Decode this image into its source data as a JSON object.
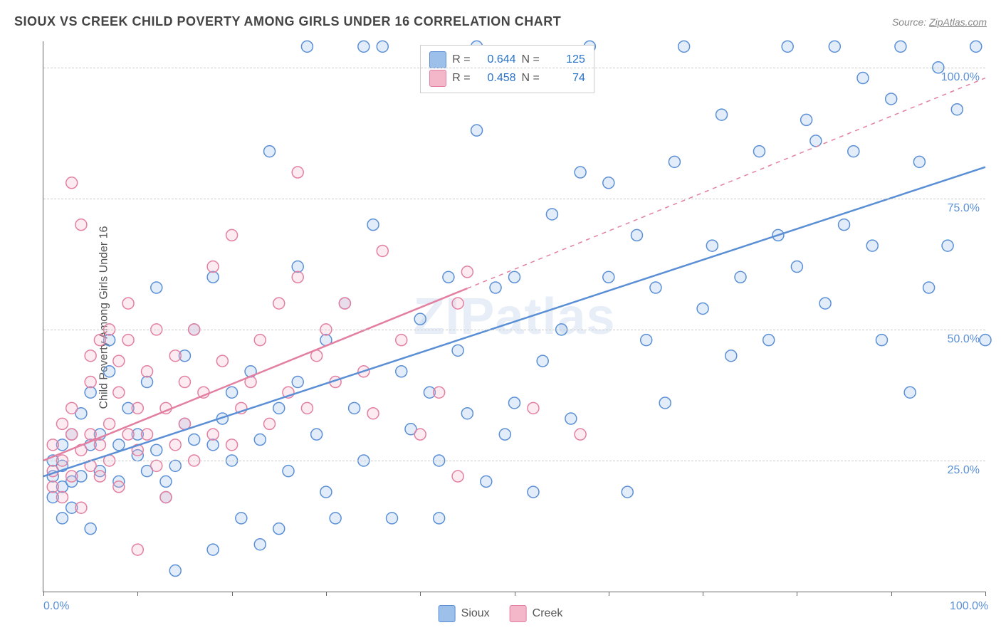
{
  "title": "SIOUX VS CREEK CHILD POVERTY AMONG GIRLS UNDER 16 CORRELATION CHART",
  "source_prefix": "Source: ",
  "source_name": "ZipAtlas.com",
  "ylabel": "Child Poverty Among Girls Under 16",
  "watermark": "ZIPatlas",
  "chart": {
    "type": "scatter",
    "xlim": [
      0,
      100
    ],
    "ylim": [
      0,
      105
    ],
    "xtick_positions": [
      0,
      10,
      20,
      30,
      40,
      50,
      60,
      70,
      80,
      90,
      100
    ],
    "xtick_labels": {
      "0": "0.0%",
      "100": "100.0%"
    },
    "ytick_positions": [
      25,
      50,
      75,
      100
    ],
    "ytick_labels": [
      "25.0%",
      "50.0%",
      "75.0%",
      "100.0%"
    ],
    "grid_color": "#cccccc",
    "background_color": "#ffffff",
    "marker_radius": 8,
    "marker_stroke_width": 1.5,
    "marker_fill_opacity": 0.28,
    "line_width": 2.5,
    "series": [
      {
        "name": "Sioux",
        "color_stroke": "#5a8fd6",
        "color_fill": "#9cc0ea",
        "R": 0.644,
        "N": 125,
        "trend": {
          "x1": 0,
          "y1": 22,
          "x2": 100,
          "y2": 81,
          "dash_from_x": null
        },
        "points": [
          [
            1,
            22
          ],
          [
            1,
            25
          ],
          [
            1,
            18
          ],
          [
            2,
            20
          ],
          [
            2,
            24
          ],
          [
            2,
            14
          ],
          [
            2,
            28
          ],
          [
            3,
            21
          ],
          [
            3,
            30
          ],
          [
            3,
            16
          ],
          [
            4,
            34
          ],
          [
            4,
            22
          ],
          [
            5,
            28
          ],
          [
            5,
            12
          ],
          [
            5,
            38
          ],
          [
            6,
            23
          ],
          [
            6,
            30
          ],
          [
            7,
            42
          ],
          [
            7,
            48
          ],
          [
            8,
            28
          ],
          [
            8,
            21
          ],
          [
            9,
            35
          ],
          [
            10,
            26
          ],
          [
            10,
            30
          ],
          [
            11,
            23
          ],
          [
            11,
            40
          ],
          [
            12,
            58
          ],
          [
            12,
            27
          ],
          [
            13,
            21
          ],
          [
            13,
            18
          ],
          [
            14,
            4
          ],
          [
            14,
            24
          ],
          [
            15,
            32
          ],
          [
            15,
            45
          ],
          [
            16,
            29
          ],
          [
            16,
            50
          ],
          [
            18,
            8
          ],
          [
            18,
            28
          ],
          [
            18,
            60
          ],
          [
            19,
            33
          ],
          [
            20,
            25
          ],
          [
            20,
            38
          ],
          [
            21,
            14
          ],
          [
            22,
            42
          ],
          [
            23,
            9
          ],
          [
            23,
            29
          ],
          [
            24,
            84
          ],
          [
            25,
            35
          ],
          [
            25,
            12
          ],
          [
            26,
            23
          ],
          [
            27,
            40
          ],
          [
            27,
            62
          ],
          [
            28,
            104
          ],
          [
            29,
            30
          ],
          [
            30,
            19
          ],
          [
            30,
            48
          ],
          [
            31,
            14
          ],
          [
            32,
            55
          ],
          [
            33,
            35
          ],
          [
            34,
            25
          ],
          [
            34,
            104
          ],
          [
            35,
            70
          ],
          [
            36,
            104
          ],
          [
            37,
            14
          ],
          [
            38,
            42
          ],
          [
            39,
            31
          ],
          [
            40,
            52
          ],
          [
            41,
            38
          ],
          [
            42,
            14
          ],
          [
            42,
            25
          ],
          [
            43,
            60
          ],
          [
            44,
            46
          ],
          [
            45,
            34
          ],
          [
            46,
            104
          ],
          [
            46,
            88
          ],
          [
            47,
            21
          ],
          [
            48,
            58
          ],
          [
            49,
            30
          ],
          [
            50,
            36
          ],
          [
            50,
            60
          ],
          [
            52,
            19
          ],
          [
            53,
            44
          ],
          [
            54,
            72
          ],
          [
            55,
            50
          ],
          [
            56,
            33
          ],
          [
            57,
            80
          ],
          [
            58,
            104
          ],
          [
            60,
            78
          ],
          [
            60,
            60
          ],
          [
            62,
            19
          ],
          [
            63,
            68
          ],
          [
            64,
            48
          ],
          [
            65,
            58
          ],
          [
            66,
            36
          ],
          [
            67,
            82
          ],
          [
            68,
            104
          ],
          [
            70,
            54
          ],
          [
            71,
            66
          ],
          [
            72,
            91
          ],
          [
            73,
            45
          ],
          [
            74,
            60
          ],
          [
            76,
            84
          ],
          [
            77,
            48
          ],
          [
            78,
            68
          ],
          [
            79,
            104
          ],
          [
            80,
            62
          ],
          [
            81,
            90
          ],
          [
            82,
            86
          ],
          [
            83,
            55
          ],
          [
            84,
            104
          ],
          [
            85,
            70
          ],
          [
            86,
            84
          ],
          [
            87,
            98
          ],
          [
            88,
            66
          ],
          [
            89,
            48
          ],
          [
            90,
            94
          ],
          [
            91,
            104
          ],
          [
            92,
            38
          ],
          [
            93,
            82
          ],
          [
            94,
            58
          ],
          [
            95,
            100
          ],
          [
            96,
            66
          ],
          [
            97,
            92
          ],
          [
            99,
            104
          ],
          [
            100,
            48
          ]
        ]
      },
      {
        "name": "Creek",
        "color_stroke": "#e37fa0",
        "color_fill": "#f4b7c9",
        "R": 0.458,
        "N": 74,
        "trend": {
          "x1": 0,
          "y1": 25,
          "x2": 100,
          "y2": 98,
          "dash_from_x": 45
        },
        "points": [
          [
            1,
            23
          ],
          [
            1,
            28
          ],
          [
            1,
            20
          ],
          [
            2,
            25
          ],
          [
            2,
            32
          ],
          [
            2,
            18
          ],
          [
            3,
            22
          ],
          [
            3,
            35
          ],
          [
            3,
            30
          ],
          [
            3,
            78
          ],
          [
            4,
            27
          ],
          [
            4,
            70
          ],
          [
            4,
            16
          ],
          [
            5,
            40
          ],
          [
            5,
            24
          ],
          [
            5,
            30
          ],
          [
            5,
            45
          ],
          [
            6,
            28
          ],
          [
            6,
            48
          ],
          [
            6,
            22
          ],
          [
            7,
            32
          ],
          [
            7,
            50
          ],
          [
            7,
            25
          ],
          [
            8,
            38
          ],
          [
            8,
            20
          ],
          [
            8,
            44
          ],
          [
            9,
            30
          ],
          [
            9,
            55
          ],
          [
            9,
            48
          ],
          [
            10,
            27
          ],
          [
            10,
            35
          ],
          [
            10,
            8
          ],
          [
            11,
            42
          ],
          [
            11,
            30
          ],
          [
            12,
            24
          ],
          [
            12,
            50
          ],
          [
            13,
            35
          ],
          [
            13,
            18
          ],
          [
            14,
            28
          ],
          [
            14,
            45
          ],
          [
            15,
            32
          ],
          [
            15,
            40
          ],
          [
            16,
            50
          ],
          [
            16,
            25
          ],
          [
            17,
            38
          ],
          [
            18,
            30
          ],
          [
            18,
            62
          ],
          [
            19,
            44
          ],
          [
            20,
            28
          ],
          [
            20,
            68
          ],
          [
            21,
            35
          ],
          [
            22,
            40
          ],
          [
            23,
            48
          ],
          [
            24,
            32
          ],
          [
            25,
            55
          ],
          [
            26,
            38
          ],
          [
            27,
            60
          ],
          [
            27,
            80
          ],
          [
            28,
            35
          ],
          [
            29,
            45
          ],
          [
            30,
            50
          ],
          [
            31,
            40
          ],
          [
            32,
            55
          ],
          [
            34,
            42
          ],
          [
            35,
            34
          ],
          [
            36,
            65
          ],
          [
            38,
            48
          ],
          [
            40,
            30
          ],
          [
            42,
            38
          ],
          [
            44,
            55
          ],
          [
            44,
            22
          ],
          [
            45,
            61
          ],
          [
            52,
            35
          ],
          [
            57,
            30
          ]
        ]
      }
    ]
  },
  "legend_top": {
    "rows": [
      {
        "swatch": "#9cc0ea",
        "border": "#5a8fd6",
        "r_label": "R =",
        "r_val": "0.644",
        "n_label": "N =",
        "n_val": "125"
      },
      {
        "swatch": "#f4b7c9",
        "border": "#e37fa0",
        "r_label": "R =",
        "r_val": "0.458",
        "n_label": "N =",
        "n_val": "74"
      }
    ]
  },
  "legend_bottom": {
    "items": [
      {
        "swatch": "#9cc0ea",
        "border": "#5a8fd6",
        "label": "Sioux"
      },
      {
        "swatch": "#f4b7c9",
        "border": "#e37fa0",
        "label": "Creek"
      }
    ]
  }
}
